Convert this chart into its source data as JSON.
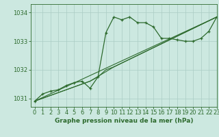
{
  "title": "Graphe pression niveau de la mer (hPa)",
  "xlabel": "Graphe pression niveau de la mer (hPa)",
  "xlim": [
    -0.5,
    23
  ],
  "ylim": [
    1030.7,
    1034.3
  ],
  "yticks": [
    1031,
    1032,
    1033,
    1034
  ],
  "xticks": [
    0,
    1,
    2,
    3,
    4,
    5,
    6,
    7,
    8,
    9,
    10,
    11,
    12,
    13,
    14,
    15,
    16,
    17,
    18,
    19,
    20,
    21,
    22,
    23
  ],
  "bg_color": "#cce8e0",
  "grid_color": "#aaccC4",
  "line_color": "#2d6a2d",
  "main_line": {
    "x": [
      0,
      1,
      2,
      3,
      4,
      5,
      6,
      7,
      8,
      9,
      10,
      11,
      12,
      13,
      14,
      15,
      16,
      17,
      18,
      19,
      20,
      21,
      22,
      23
    ],
    "y": [
      1030.9,
      1031.15,
      1031.25,
      1031.3,
      1031.45,
      1031.55,
      1031.6,
      1031.35,
      1031.75,
      1033.3,
      1033.85,
      1033.75,
      1033.85,
      1033.65,
      1033.65,
      1033.5,
      1033.1,
      1033.1,
      1033.05,
      1033.0,
      1033.0,
      1033.1,
      1033.35,
      1033.85
    ]
  },
  "line2": {
    "x": [
      0,
      7,
      8,
      9,
      10,
      23
    ],
    "y": [
      1030.9,
      1031.6,
      1031.75,
      1032.0,
      1032.1,
      1033.85
    ]
  },
  "line3": {
    "x": [
      0,
      7,
      10,
      23
    ],
    "y": [
      1030.9,
      1031.6,
      1032.1,
      1033.85
    ]
  },
  "line4": {
    "x": [
      0,
      23
    ],
    "y": [
      1030.9,
      1033.85
    ]
  },
  "tick_fontsize": 6,
  "label_fontsize": 6.5
}
